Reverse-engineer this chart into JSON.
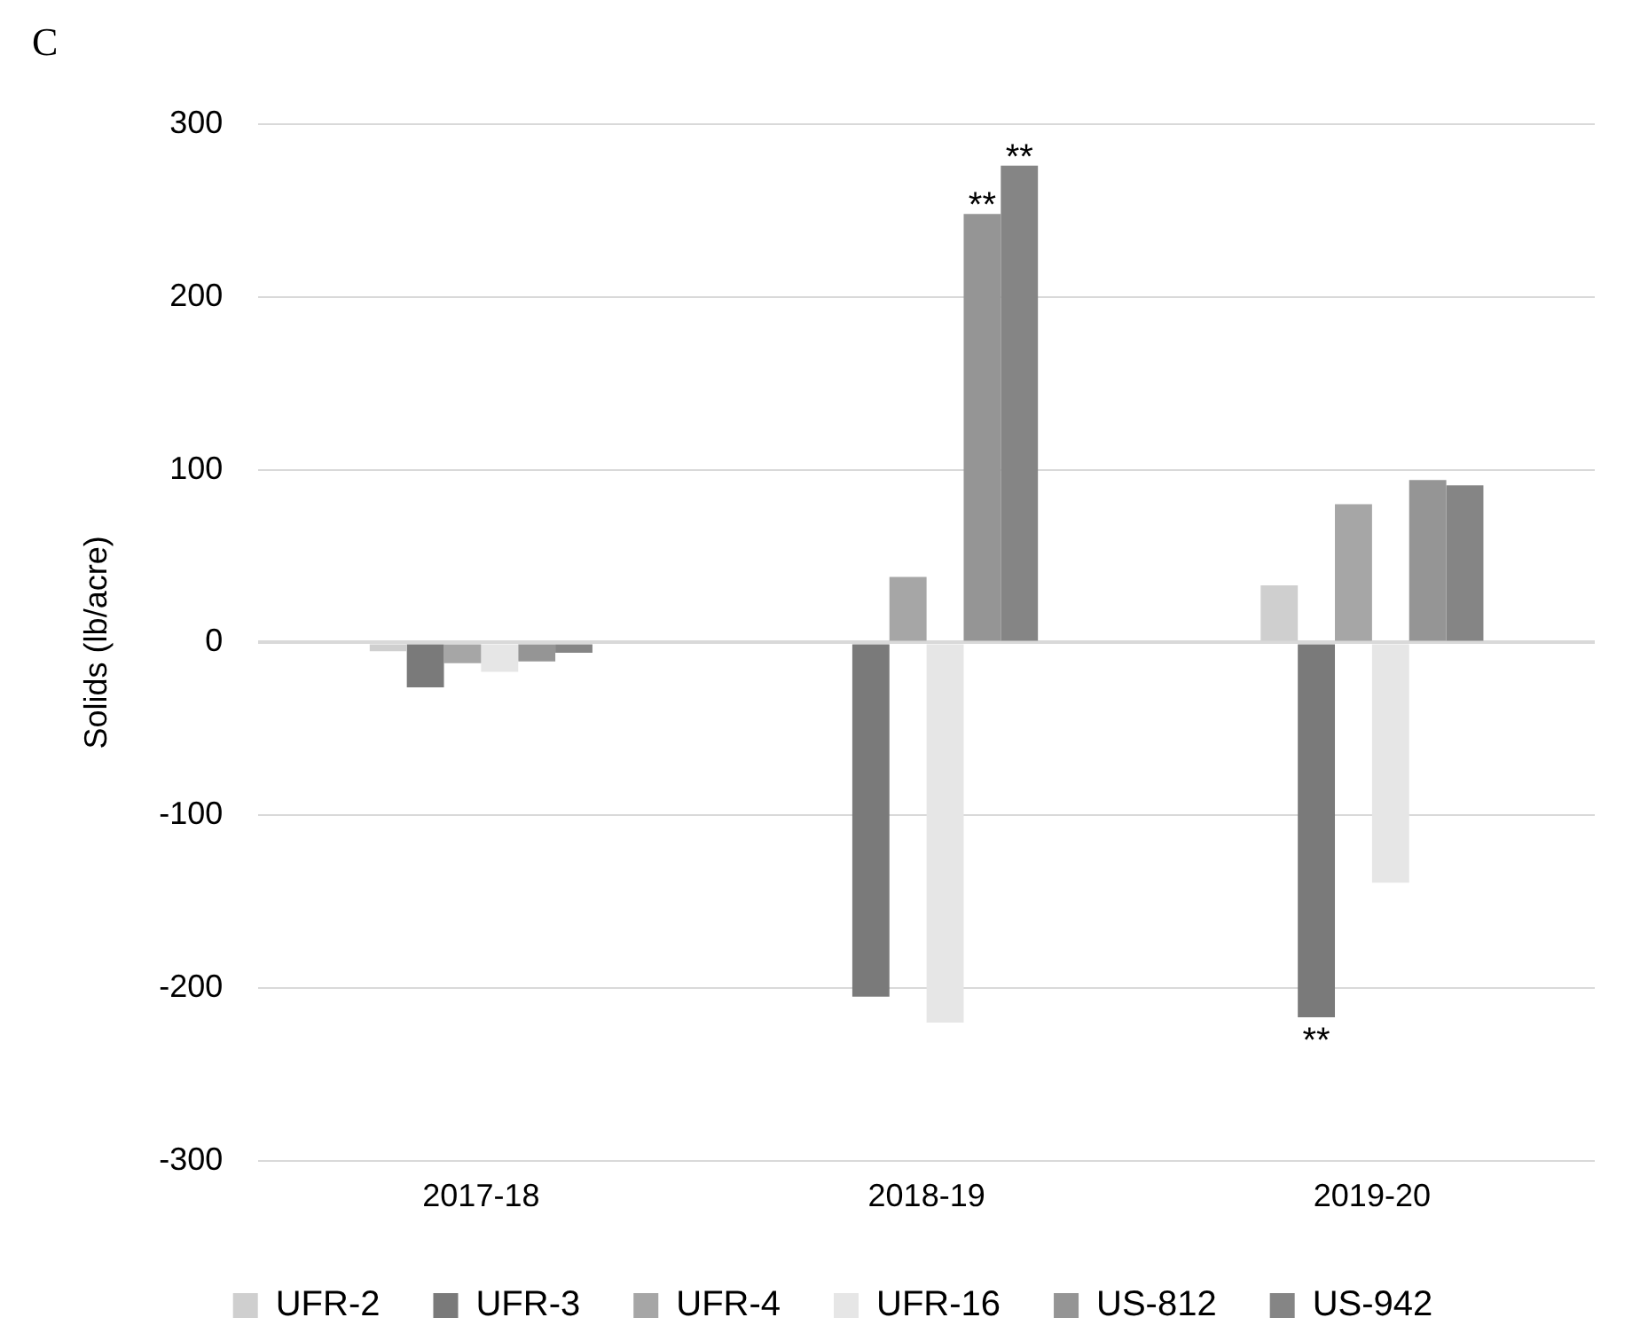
{
  "chart_data": {
    "type": "bar",
    "ylabel": "Solids (lb/acre)",
    "categories": [
      "2017-18",
      "2018-19",
      "2019-20"
    ],
    "series": [
      {
        "name": "UFR-2",
        "color": "#cfcfcf",
        "values": [
          -5,
          null,
          33
        ]
      },
      {
        "name": "UFR-3",
        "color": "#7a7a7a",
        "values": [
          -26,
          -205,
          -217
        ],
        "value_labels": [
          null,
          null,
          "**"
        ]
      },
      {
        "name": "UFR-4",
        "color": "#a6a6a6",
        "values": [
          -12,
          38,
          80
        ]
      },
      {
        "name": "UFR-16",
        "color": "#e6e6e6",
        "values": [
          -17,
          -220,
          -139
        ]
      },
      {
        "name": "US-812",
        "color": "#959595",
        "values": [
          -11,
          248,
          94
        ],
        "value_labels": [
          null,
          "**",
          null
        ]
      },
      {
        "name": "US-942",
        "color": "#858585",
        "values": [
          -6,
          276,
          91
        ],
        "value_labels": [
          null,
          "**",
          null
        ]
      }
    ],
    "ylim": [
      -300,
      300
    ],
    "yticks": [
      -300,
      -200,
      -100,
      0,
      100,
      200,
      300
    ],
    "grid": "y",
    "legend": "bottom",
    "annotations": [
      "C"
    ]
  }
}
